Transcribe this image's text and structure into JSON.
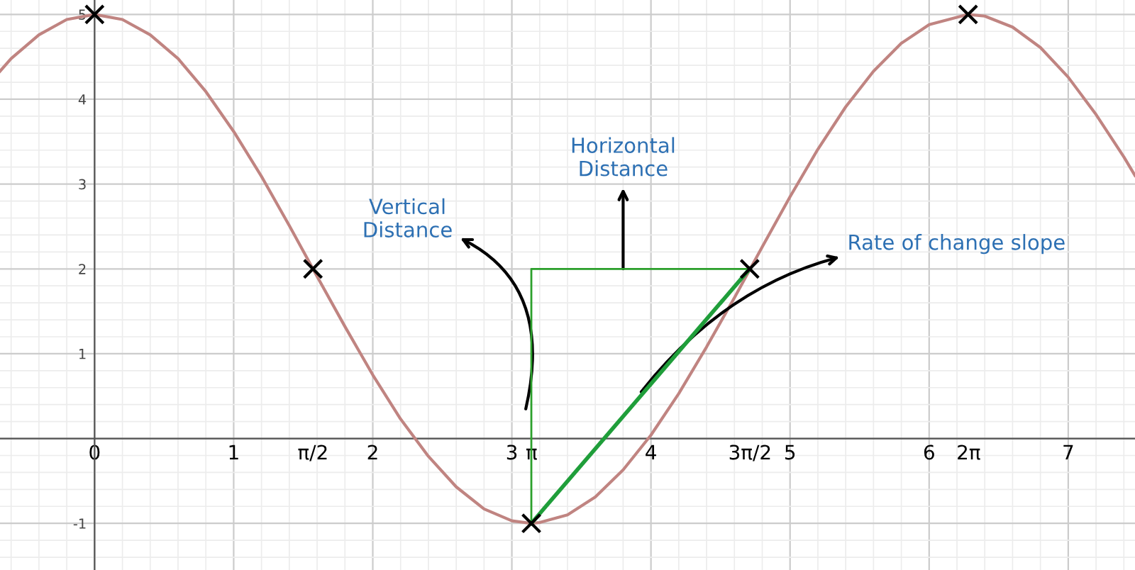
{
  "chart_data": {
    "type": "line",
    "xlim": [
      -0.68,
      7.48
    ],
    "ylim": [
      -1.55,
      5.17
    ],
    "xticks": [
      0,
      1,
      2,
      3,
      4,
      5,
      6,
      7,
      {
        "value": 1.5708,
        "label": "π/2"
      },
      {
        "value": 3.1416,
        "label": "π"
      },
      {
        "value": 4.7124,
        "label": "3π/2"
      },
      {
        "value": 6.2832,
        "label": "2π"
      }
    ],
    "yticks": [
      -1,
      1,
      2,
      3,
      4,
      5
    ],
    "grid": true,
    "series": [
      {
        "color": "#c08481",
        "marker": "none",
        "x": [
          -0.68,
          -0.6,
          -0.4,
          -0.2,
          0,
          0.2,
          0.4,
          0.6,
          0.8,
          1.0,
          1.2,
          1.4,
          1.6,
          1.8,
          2.0,
          2.2,
          2.4,
          2.6,
          2.8,
          3.0,
          3.14,
          3.2,
          3.4,
          3.6,
          3.8,
          4.0,
          4.2,
          4.4,
          4.6,
          4.8,
          5.0,
          5.2,
          5.4,
          5.6,
          5.8,
          6.0,
          6.28,
          6.4,
          6.6,
          6.8,
          7.0,
          7.2,
          7.4,
          7.48
        ],
        "values": [
          4.33,
          4.48,
          4.76,
          4.94,
          5,
          4.94,
          4.76,
          4.48,
          4.09,
          3.62,
          3.09,
          2.51,
          1.91,
          1.32,
          0.75,
          0.23,
          -0.21,
          -0.57,
          -0.83,
          -0.97,
          -1,
          -0.99,
          -0.9,
          -0.69,
          -0.37,
          0.04,
          0.53,
          1.08,
          1.66,
          2.26,
          2.85,
          3.41,
          3.91,
          4.33,
          4.66,
          4.88,
          5,
          4.98,
          4.85,
          4.61,
          4.26,
          3.82,
          3.32,
          3.1
        ]
      },
      {
        "type": "scatter",
        "color": "#000000",
        "marker": "cross",
        "x": [
          0,
          1.57,
          3.14,
          4.71,
          6.28
        ],
        "values": [
          5,
          2,
          -1,
          2,
          5
        ]
      },
      {
        "color": "#2ca02c",
        "marker": "none",
        "x": [
          3.14,
          3.14,
          4.71
        ],
        "values": [
          -1,
          2,
          2
        ]
      },
      {
        "color": "#1f9e3a",
        "marker": "none",
        "x": [
          3.14,
          4.71
        ],
        "values": [
          -1,
          2
        ]
      }
    ],
    "annotations": [
      {
        "text": "Horizontal\nDistance",
        "x": 3.8,
        "y": 2
      },
      {
        "text": "Vertical\nDistance",
        "x": 3.1,
        "y": 0.35
      },
      {
        "text": "Rate of change slope",
        "x": 3.93,
        "y": 0.55
      }
    ]
  }
}
